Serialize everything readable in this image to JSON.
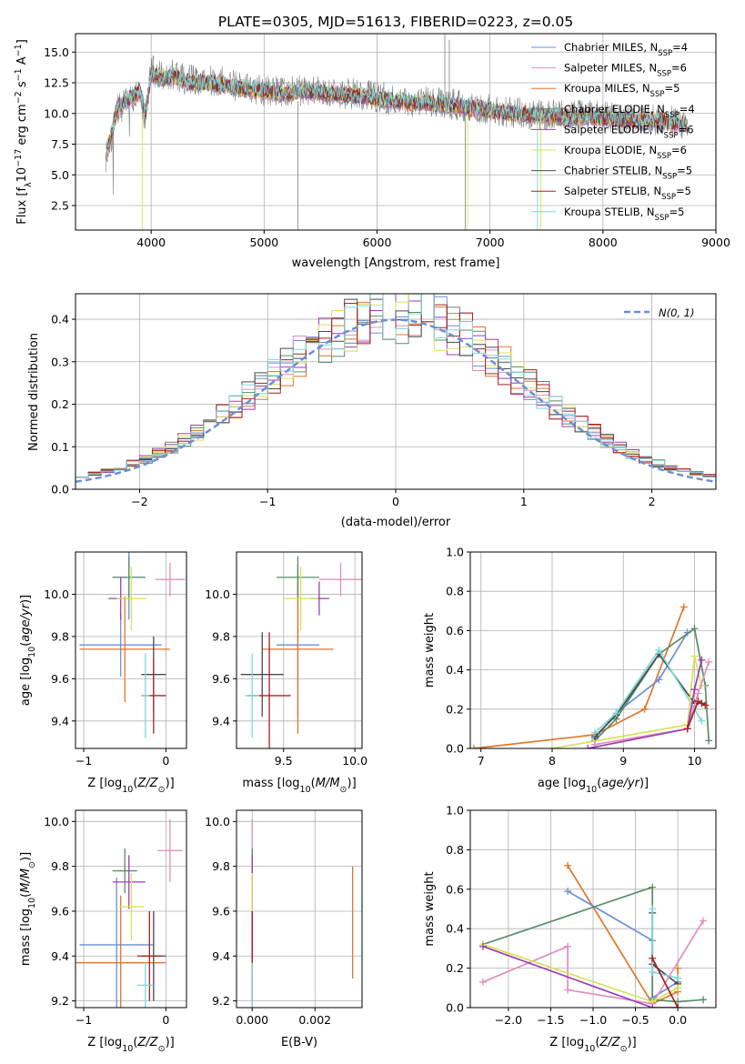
{
  "title": "PLATE=0305, MJD=51613, FIBERID=0223, z=0.05",
  "models": [
    {
      "name": "Chabrier MILES, N$_{SSP}$=4",
      "label_text": "Chabrier MILES, N",
      "ssp": "=4",
      "color": "#6a8fd8"
    },
    {
      "name": "Salpeter MILES, N$_{SSP}$=6",
      "label_text": "Salpeter MILES, N",
      "ssp": "=6",
      "color": "#e08fbc"
    },
    {
      "name": "Kroupa MILES, N$_{SSP}$=5",
      "label_text": "Kroupa MILES, N",
      "ssp": "=5",
      "color": "#e0762a"
    },
    {
      "name": "Chabrier ELODIE, N$_{SSP}$=4",
      "label_text": "Chabrier ELODIE, N",
      "ssp": "=4",
      "color": "#5a8c68"
    },
    {
      "name": "Salpeter ELODIE, N$_{SSP}$=6",
      "label_text": "Salpeter ELODIE, N",
      "ssp": "=6",
      "color": "#9b3fb5"
    },
    {
      "name": "Kroupa ELODIE, N$_{SSP}$=6",
      "label_text": "Kroupa ELODIE, N",
      "ssp": "=6",
      "color": "#d8e05a"
    },
    {
      "name": "Chabrier STELIB, N$_{SSP}$=5",
      "label_text": "Chabrier STELIB, N",
      "ssp": "=5",
      "color": "#4a4a4a"
    },
    {
      "name": "Salpeter STELIB, N$_{SSP}$=5",
      "label_text": "Salpeter STELIB, N",
      "ssp": "=5",
      "color": "#a82020"
    },
    {
      "name": "Kroupa STELIB, N$_{SSP}$=5",
      "label_text": "Kroupa STELIB, N",
      "ssp": "=5",
      "color": "#7ed8d8"
    }
  ],
  "chart_data": [
    {
      "type": "line",
      "id": "spectrum",
      "xlabel": "wavelength [Angstrom, rest frame]",
      "ylabel": "Flux [f$_\\lambda$10$^{-17}$ erg cm$^{-2}$ s$^{-1}$ A$^{-1}$]",
      "ylabel_parts": [
        "Flux [f",
        "λ",
        "10",
        "−17",
        " erg cm",
        "−2",
        " s",
        "−1",
        " A",
        "−1",
        "]"
      ],
      "xlim": [
        3330,
        9000
      ],
      "ylim": [
        0.5,
        16.5
      ],
      "xticks": [
        4000,
        5000,
        6000,
        7000,
        8000,
        9000
      ],
      "yticks": [
        2.5,
        5.0,
        7.5,
        10.0,
        12.5,
        15.0
      ],
      "data_color": "#808080",
      "data_series": {
        "x": [
          3600,
          3650,
          3700,
          3800,
          3900,
          3950,
          4000,
          4100,
          4200,
          4300,
          4400,
          4500,
          4700,
          4900,
          5100,
          5200,
          5300,
          5500,
          5700,
          5900,
          6100,
          6300,
          6500,
          6600,
          6700,
          6900,
          7100,
          7300,
          7500,
          7700,
          7900,
          8100,
          8300,
          8500,
          8700,
          8750
        ],
        "y": [
          6.5,
          8.0,
          10.2,
          11.0,
          11.5,
          9.5,
          13.5,
          13.0,
          13.2,
          12.8,
          12.6,
          12.8,
          12.4,
          12.0,
          11.8,
          11.6,
          11.9,
          11.8,
          11.6,
          11.5,
          11.2,
          11.0,
          10.9,
          10.8,
          10.7,
          10.5,
          10.2,
          10.0,
          9.9,
          9.8,
          9.8,
          9.6,
          9.5,
          9.5,
          9.2,
          9.0
        ]
      },
      "model_series": {
        "x": [
          3600,
          3650,
          3700,
          3800,
          3900,
          3950,
          4000,
          4100,
          4200,
          4300,
          4400,
          4500,
          4700,
          4900,
          5100,
          5200,
          5300,
          5500,
          5700,
          5900,
          6100,
          6300,
          6500,
          6600,
          6700,
          6900,
          7100,
          7300,
          7500,
          7700,
          7900,
          8100,
          8300,
          8500,
          8700,
          8750
        ],
        "y": [
          7.0,
          8.3,
          10.5,
          11.2,
          11.8,
          10.0,
          13.2,
          12.8,
          13.0,
          12.6,
          12.4,
          12.5,
          12.2,
          11.9,
          11.7,
          11.5,
          11.8,
          11.7,
          11.5,
          11.3,
          11.1,
          10.9,
          10.8,
          10.7,
          10.6,
          10.4,
          10.1,
          9.9,
          9.8,
          9.7,
          9.7,
          9.5,
          9.4,
          9.4,
          9.1,
          8.9
        ]
      }
    },
    {
      "type": "line",
      "id": "residuals",
      "xlabel": "(data-model)/error",
      "ylabel": "Normed distribution",
      "xlim": [
        -2.5,
        2.5
      ],
      "ylim": [
        0,
        0.46
      ],
      "xticks": [
        -2,
        -1,
        0,
        1,
        2
      ],
      "yticks": [
        0.0,
        0.1,
        0.2,
        0.3,
        0.4
      ],
      "legend": "$\\mathcal{N}(0,1)$",
      "legend_text": "N(0, 1)",
      "bin_width": 0.1
    },
    {
      "type": "scatter",
      "id": "age-vs-Z",
      "xlabel": "Z [log$_{10}$(Z/Z$_\\odot$)]",
      "ylabel": "age  [log$_{10}$(age/yr)]",
      "xlim": [
        -1.1,
        0.25
      ],
      "ylim": [
        9.27,
        10.2
      ],
      "xticks": [
        -1,
        0
      ],
      "yticks": [
        9.4,
        9.6,
        9.8,
        10.0
      ],
      "points": [
        {
          "model": 0,
          "x": -0.55,
          "y": 9.76,
          "xerr": 0.5,
          "yerr": 0.15
        },
        {
          "model": 2,
          "x": -0.5,
          "y": 9.74,
          "xerr": 0.55,
          "yerr": 0.25
        },
        {
          "model": 0,
          "x": -0.45,
          "y": 10.08,
          "xerr": 0.2,
          "yerr": 0.2
        },
        {
          "model": 3,
          "x": -0.45,
          "y": 10.08,
          "xerr": 0.2,
          "yerr": 0.1
        },
        {
          "model": 4,
          "x": -0.55,
          "y": 9.98,
          "xerr": 0.15,
          "yerr": 0.1
        },
        {
          "model": 5,
          "x": -0.42,
          "y": 9.98,
          "xerr": 0.18,
          "yerr": 0.15
        },
        {
          "model": 6,
          "x": -0.15,
          "y": 9.62,
          "xerr": 0.15,
          "yerr": 0.18
        },
        {
          "model": 7,
          "x": -0.15,
          "y": 9.52,
          "xerr": 0.15,
          "yerr": 0.18
        },
        {
          "model": 8,
          "x": -0.25,
          "y": 9.52,
          "xerr": 0.05,
          "yerr": 0.2
        },
        {
          "model": 1,
          "x": 0.05,
          "y": 10.07,
          "xerr": 0.18,
          "yerr": 0.08
        }
      ]
    },
    {
      "type": "scatter",
      "id": "age-vs-mass",
      "xlabel": "mass [log$_{10}$(M/M$_\\odot$)]",
      "ylabel": "",
      "xlim": [
        9.17,
        10.05
      ],
      "ylim": [
        9.27,
        10.2
      ],
      "xticks": [
        9.5,
        10.0
      ],
      "yticks": [
        9.4,
        9.6,
        9.8,
        10.0
      ],
      "points": [
        {
          "model": 0,
          "x": 9.6,
          "y": 9.76,
          "xerr": 0.15,
          "yerr": 0.35
        },
        {
          "model": 2,
          "x": 9.6,
          "y": 9.74,
          "xerr": 0.25,
          "yerr": 0.4
        },
        {
          "model": 3,
          "x": 9.6,
          "y": 10.08,
          "xerr": 0.15,
          "yerr": 0.1
        },
        {
          "model": 4,
          "x": 9.75,
          "y": 9.98,
          "xerr": 0.07,
          "yerr": 0.08
        },
        {
          "model": 5,
          "x": 9.62,
          "y": 9.98,
          "xerr": 0.12,
          "yerr": 0.15
        },
        {
          "model": 6,
          "x": 9.35,
          "y": 9.62,
          "xerr": 0.15,
          "yerr": 0.2
        },
        {
          "model": 7,
          "x": 9.4,
          "y": 9.52,
          "xerr": 0.15,
          "yerr": 0.3
        },
        {
          "model": 8,
          "x": 9.28,
          "y": 9.52,
          "xerr": 0.05,
          "yerr": 0.2
        },
        {
          "model": 1,
          "x": 9.9,
          "y": 10.07,
          "xerr": 0.15,
          "yerr": 0.08
        }
      ]
    },
    {
      "type": "line",
      "id": "weight-vs-age",
      "xlabel": "age  [log$_{10}$(age/yr)]",
      "ylabel": "mass weight",
      "xlim": [
        6.85,
        10.3
      ],
      "ylim": [
        0,
        1
      ],
      "xticks": [
        7,
        8,
        9,
        10
      ],
      "yticks": [
        0.0,
        0.2,
        0.4,
        0.6,
        0.8,
        1.0
      ],
      "series": [
        {
          "model": 2,
          "x": [
            6.9,
            8.6,
            9.3,
            9.85
          ],
          "y": [
            0.0,
            0.07,
            0.2,
            0.72
          ]
        },
        {
          "model": 0,
          "x": 8.6,
          "y": 0,
          "xs": [
            8.6,
            8.9,
            9.5,
            9.9
          ],
          "ys": [
            0.05,
            0.18,
            0.35,
            0.59
          ]
        },
        {
          "model": 3,
          "x": [
            8.6,
            8.9,
            9.5,
            10.0,
            10.15,
            10.2
          ],
          "y": [
            0.04,
            0.15,
            0.48,
            0.61,
            0.32,
            0.04
          ]
        },
        {
          "model": 6,
          "x": [
            8.6,
            8.9,
            9.5,
            10.0,
            10.1
          ],
          "y": [
            0.06,
            0.17,
            0.48,
            0.23,
            0.23
          ]
        },
        {
          "model": 8,
          "x": [
            8.6,
            8.9,
            9.5,
            10.0,
            10.1
          ],
          "y": [
            0.08,
            0.18,
            0.5,
            0.2,
            0.14
          ]
        },
        {
          "model": 5,
          "x": [
            8.0,
            9.9,
            10.0,
            10.1
          ],
          "y": [
            0.0,
            0.12,
            0.47,
            0.32
          ]
        },
        {
          "model": 1,
          "x": [
            8.6,
            9.9,
            10.05,
            10.2
          ],
          "y": [
            0.02,
            0.1,
            0.28,
            0.44
          ]
        },
        {
          "model": 4,
          "x": [
            8.5,
            9.9,
            10.0,
            10.1
          ],
          "y": [
            0.0,
            0.1,
            0.3,
            0.45
          ]
        },
        {
          "model": 7,
          "x": [
            9.9,
            10.05,
            10.15
          ],
          "y": [
            0.1,
            0.24,
            0.22
          ]
        }
      ]
    },
    {
      "type": "scatter",
      "id": "mass-vs-Z",
      "xlabel": "Z [log$_{10}$(Z/Z$_\\odot$)]",
      "ylabel": "mass [log$_{10}$(M/M$_\\odot$)]",
      "xlim": [
        -1.1,
        0.25
      ],
      "ylim": [
        9.17,
        10.05
      ],
      "xticks": [
        -1,
        0
      ],
      "yticks": [
        9.2,
        9.4,
        9.6,
        9.8,
        10.0
      ],
      "points": [
        {
          "model": 0,
          "x": -0.6,
          "y": 9.45,
          "xerr": 0.45,
          "yerr": 0.3
        },
        {
          "model": 2,
          "x": -0.55,
          "y": 9.37,
          "xerr": 0.55,
          "yerr": 0.3
        },
        {
          "model": 3,
          "x": -0.5,
          "y": 9.78,
          "xerr": 0.15,
          "yerr": 0.1
        },
        {
          "model": 4,
          "x": -0.45,
          "y": 9.73,
          "xerr": 0.2,
          "yerr": 0.12
        },
        {
          "model": 5,
          "x": -0.42,
          "y": 9.62,
          "xerr": 0.15,
          "yerr": 0.15
        },
        {
          "model": 6,
          "x": -0.15,
          "y": 9.4,
          "xerr": 0.15,
          "yerr": 0.2
        },
        {
          "model": 7,
          "x": -0.2,
          "y": 9.4,
          "xerr": 0.15,
          "yerr": 0.2
        },
        {
          "model": 8,
          "x": -0.25,
          "y": 9.27,
          "xerr": 0.1,
          "yerr": 0.1
        },
        {
          "model": 1,
          "x": 0.05,
          "y": 9.87,
          "xerr": 0.15,
          "yerr": 0.14
        }
      ]
    },
    {
      "type": "scatter",
      "id": "mass-vs-ebv",
      "xlabel": "E(B-V)",
      "ylabel": "",
      "xlim": [
        -0.0005,
        0.0035
      ],
      "ylim": [
        9.17,
        10.05
      ],
      "xticks": [
        0.0,
        0.002
      ],
      "yticks": [
        9.2,
        9.4,
        9.6,
        9.8,
        10.0
      ],
      "points": [
        {
          "model": 0,
          "x": 0.0,
          "y": 9.45,
          "xerr": 0,
          "yerr": 0.3
        },
        {
          "model": 1,
          "x": 0.0,
          "y": 9.87,
          "xerr": 0,
          "yerr": 0.14
        },
        {
          "model": 3,
          "x": 0.0,
          "y": 9.78,
          "xerr": 0,
          "yerr": 0.1
        },
        {
          "model": 4,
          "x": 0.0,
          "y": 9.73,
          "xerr": 0,
          "yerr": 0.12
        },
        {
          "model": 5,
          "x": 0.0,
          "y": 9.62,
          "xerr": 0,
          "yerr": 0.15
        },
        {
          "model": 6,
          "x": 0.0,
          "y": 9.4,
          "xerr": 0,
          "yerr": 0.2
        },
        {
          "model": 7,
          "x": 0.0,
          "y": 9.4,
          "xerr": 0,
          "yerr": 0.2
        },
        {
          "model": 8,
          "x": 0.0,
          "y": 9.27,
          "xerr": 0,
          "yerr": 0.1
        },
        {
          "model": 2,
          "x": 0.0032,
          "y": 9.55,
          "xerr": 0,
          "yerr": 0.25
        }
      ]
    },
    {
      "type": "line",
      "id": "weight-vs-Z",
      "xlabel": "Z [log$_{10}$(Z/Z$_\\odot$)]",
      "ylabel": "mass weight",
      "xlim": [
        -2.45,
        0.45
      ],
      "ylim": [
        0,
        1
      ],
      "xticks": [
        -2.0,
        -1.5,
        -1.0,
        -0.5,
        0.0
      ],
      "yticks": [
        0.0,
        0.2,
        0.4,
        0.6,
        0.8,
        1.0
      ],
      "series": [
        {
          "model": 2,
          "x": [
            -1.3,
            -0.3,
            0.0,
            0.0
          ],
          "y": [
            0.72,
            0.02,
            0.08,
            0.2
          ]
        },
        {
          "model": 0,
          "x": [
            -1.3,
            -0.3,
            -0.3,
            0.0
          ],
          "y": [
            0.59,
            0.34,
            0.05,
            0.13
          ]
        },
        {
          "model": 3,
          "x": [
            -2.3,
            -0.3,
            -0.3,
            0.0,
            0.3
          ],
          "y": [
            0.32,
            0.61,
            0.04,
            0.03,
            0.04
          ]
        },
        {
          "model": 6,
          "x": [
            -0.3,
            -0.3,
            0.0
          ],
          "y": [
            0.48,
            0.22,
            0.12
          ]
        },
        {
          "model": 8,
          "x": [
            -0.3,
            -0.3,
            0.0
          ],
          "y": [
            0.5,
            0.18,
            0.15
          ]
        },
        {
          "model": 1,
          "x": [
            -2.3,
            -1.3,
            -1.3,
            -0.3,
            0.3
          ],
          "y": [
            0.13,
            0.31,
            0.09,
            0.02,
            0.44
          ]
        },
        {
          "model": 5,
          "x": [
            -2.3,
            -0.3,
            0.0
          ],
          "y": [
            0.32,
            0.03,
            0.1
          ]
        },
        {
          "model": 4,
          "x": [
            -2.3,
            -0.3,
            0.0
          ],
          "y": [
            0.31,
            0.0,
            0.0
          ]
        },
        {
          "model": 7,
          "x": [
            -0.3,
            0.0
          ],
          "y": [
            0.25,
            0.0
          ]
        }
      ]
    }
  ]
}
